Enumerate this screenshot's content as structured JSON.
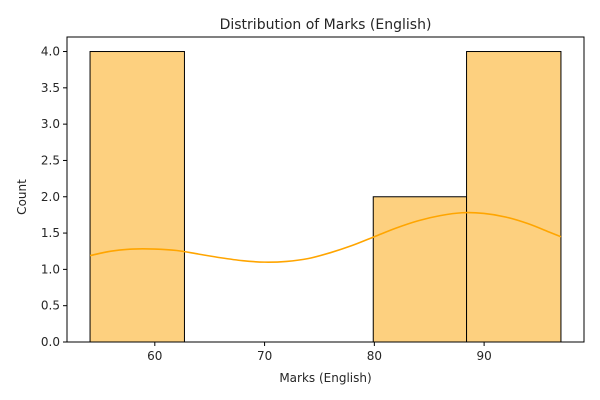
{
  "chart_data": {
    "type": "bar",
    "subtype": "histogram-with-kde",
    "title": "Distribution of Marks (English)",
    "xlabel": "Marks (English)",
    "ylabel": "Count",
    "bins": [
      {
        "start": 54.1,
        "end": 62.7,
        "count": 4
      },
      {
        "start": 62.7,
        "end": 71.3,
        "count": 0
      },
      {
        "start": 71.3,
        "end": 79.9,
        "count": 0
      },
      {
        "start": 79.9,
        "end": 88.4,
        "count": 2
      },
      {
        "start": 88.4,
        "end": 97.0,
        "count": 4
      }
    ],
    "kde": {
      "x": [
        54.1,
        56,
        58,
        60,
        62,
        64,
        66,
        68,
        70,
        72,
        74,
        76,
        78,
        80,
        82,
        84,
        86,
        88,
        90,
        92,
        94,
        96,
        97
      ],
      "y": [
        1.19,
        1.25,
        1.28,
        1.28,
        1.26,
        1.21,
        1.16,
        1.12,
        1.1,
        1.11,
        1.15,
        1.23,
        1.33,
        1.45,
        1.57,
        1.67,
        1.74,
        1.78,
        1.77,
        1.72,
        1.63,
        1.51,
        1.45
      ]
    },
    "xlim": [
      52.0,
      99.1
    ],
    "ylim": [
      0,
      4.2
    ],
    "xticks": [
      "60",
      "70",
      "80",
      "90"
    ],
    "xtick_values": [
      60,
      70,
      80,
      90
    ],
    "yticks": [
      "0.0",
      "0.5",
      "1.0",
      "1.5",
      "2.0",
      "2.5",
      "3.0",
      "3.5",
      "4.0"
    ],
    "ytick_values": [
      0,
      0.5,
      1.0,
      1.5,
      2.0,
      2.5,
      3.0,
      3.5,
      4.0
    ],
    "grid": false,
    "colors": {
      "bar_fill": "#fdd07f",
      "bar_edge": "#000000",
      "kde_line": "#ffa500",
      "axis": "#000000",
      "text": "#262626"
    }
  }
}
